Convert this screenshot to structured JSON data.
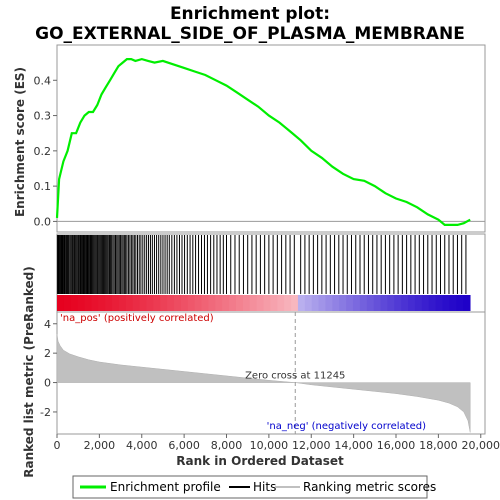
{
  "chart_data": {
    "type": "line",
    "title_line1": "Enrichment plot:",
    "title_line2": "GO_EXTERNAL_SIDE_OF_PLASMA_MEMBRANE",
    "es_panel": {
      "ylabel": "Enrichment score (ES)",
      "ylim": [
        -0.03,
        0.5
      ],
      "yticks": [
        0.0,
        0.1,
        0.2,
        0.3,
        0.4
      ],
      "ytick_labels": [
        "0.0",
        "0.1",
        "0.2",
        "0.3",
        "0.4"
      ],
      "series": [
        {
          "name": "Enrichment profile",
          "color": "#00ee00",
          "x": [
            0,
            100,
            300,
            500,
            700,
            900,
            1100,
            1300,
            1500,
            1700,
            1900,
            2100,
            2300,
            2500,
            2700,
            2900,
            3100,
            3300,
            3500,
            3700,
            4000,
            4300,
            4600,
            5000,
            5500,
            6000,
            6500,
            7000,
            7500,
            8000,
            8500,
            9000,
            9500,
            10000,
            10500,
            11000,
            11500,
            12000,
            12500,
            13000,
            13500,
            14000,
            14500,
            15000,
            15500,
            16000,
            16500,
            17000,
            17500,
            18000,
            18300,
            18600,
            18900,
            19200,
            19500
          ],
          "y": [
            0.01,
            0.12,
            0.17,
            0.2,
            0.25,
            0.25,
            0.28,
            0.3,
            0.31,
            0.31,
            0.33,
            0.36,
            0.38,
            0.4,
            0.42,
            0.44,
            0.45,
            0.46,
            0.46,
            0.455,
            0.46,
            0.455,
            0.45,
            0.455,
            0.445,
            0.435,
            0.425,
            0.415,
            0.4,
            0.385,
            0.365,
            0.345,
            0.325,
            0.3,
            0.28,
            0.255,
            0.23,
            0.2,
            0.18,
            0.155,
            0.135,
            0.12,
            0.115,
            0.1,
            0.08,
            0.065,
            0.055,
            0.04,
            0.02,
            0.005,
            -0.01,
            -0.01,
            -0.01,
            -0.005,
            0.005
          ]
        }
      ]
    },
    "hits": {
      "positions": [
        20,
        60,
        90,
        130,
        170,
        210,
        240,
        280,
        330,
        370,
        420,
        460,
        500,
        540,
        600,
        650,
        700,
        740,
        790,
        830,
        880,
        930,
        980,
        1020,
        1070,
        1110,
        1160,
        1200,
        1250,
        1300,
        1340,
        1390,
        1440,
        1490,
        1540,
        1580,
        1630,
        1680,
        1730,
        1780,
        1830,
        1880,
        1920,
        1970,
        2020,
        2070,
        2120,
        2170,
        2220,
        2270,
        2320,
        2370,
        2420,
        2480,
        2530,
        2580,
        2640,
        2700,
        2760,
        2820,
        2880,
        2940,
        3000,
        3060,
        3120,
        3180,
        3240,
        3300,
        3370,
        3440,
        3510,
        3580,
        3650,
        3720,
        3800,
        3880,
        3960,
        4050,
        4140,
        4230,
        4320,
        4410,
        4500,
        4600,
        4700,
        4800,
        4900,
        5000,
        5100,
        5200,
        5300,
        5420,
        5540,
        5660,
        5780,
        5900,
        6020,
        6150,
        6280,
        6410,
        6540,
        6680,
        6820,
        6960,
        7100,
        7250,
        7400,
        7550,
        7700,
        7850,
        8000,
        8200,
        8400,
        8600,
        8800,
        9000,
        9200,
        9400,
        9600,
        9800,
        10000,
        10200,
        10400,
        10600,
        10800,
        11000,
        11200,
        11500,
        11700,
        11900,
        12100,
        12300,
        12500,
        12700,
        12900,
        13100,
        13300,
        13500,
        13700,
        13900,
        14100,
        14300,
        14500,
        14700,
        14900,
        15100,
        15300,
        15500,
        15700,
        15900,
        16100,
        16300,
        16500,
        16700,
        16900,
        17100,
        17300,
        17500,
        17700,
        17900,
        18100,
        18300,
        18500,
        18700,
        18900,
        19100,
        19300
      ],
      "color": "#000000"
    },
    "ranking_panel": {
      "ylabel": "Ranked list metric (PreRanked)",
      "ylim": [
        -3.5,
        4.8
      ],
      "yticks": [
        -2,
        0,
        2,
        4
      ],
      "ytick_labels": [
        "-2",
        "0",
        "2",
        "4"
      ],
      "series": [
        {
          "name": "Ranking metric scores",
          "color": "#c0c0c0",
          "x": [
            0,
            50,
            150,
            300,
            600,
            1000,
            1500,
            2000,
            3000,
            4000,
            5000,
            6000,
            7000,
            8000,
            9000,
            10000,
            11245,
            12000,
            13000,
            14000,
            15000,
            16000,
            17000,
            18000,
            18500,
            18900,
            19200,
            19400,
            19500
          ],
          "y": [
            3.3,
            2.8,
            2.5,
            2.2,
            1.95,
            1.75,
            1.55,
            1.4,
            1.2,
            1.05,
            0.9,
            0.75,
            0.6,
            0.45,
            0.3,
            0.15,
            0.0,
            -0.15,
            -0.3,
            -0.45,
            -0.6,
            -0.75,
            -0.95,
            -1.2,
            -1.4,
            -1.65,
            -2.0,
            -2.6,
            -3.4
          ]
        }
      ],
      "pos_label": "'na_pos' (positively correlated)",
      "neg_label": "'na_neg' (negatively correlated)",
      "zero_cross_label": "Zero cross at 11245",
      "zero_cross": 11245
    },
    "xaxis": {
      "xlabel": "Rank in Ordered Dataset",
      "xlim": [
        0,
        20200
      ],
      "xticks": [
        0,
        2000,
        4000,
        6000,
        8000,
        10000,
        12000,
        14000,
        16000,
        18000,
        20000
      ],
      "xtick_labels": [
        "0",
        "2,000",
        "4,000",
        "6,000",
        "8,000",
        "10,000",
        "12,000",
        "14,000",
        "16,000",
        "18,000",
        "20,000"
      ]
    },
    "legend": {
      "placement": "bottom",
      "items": [
        {
          "name": "Enrichment profile",
          "color": "#00ee00"
        },
        {
          "name": "Hits",
          "color": "#000000"
        },
        {
          "name": "Ranking metric scores",
          "color": "#c0c0c0"
        }
      ]
    },
    "colors": {
      "pos_label": "#cc0000",
      "neg_label": "#0000cc",
      "heat_red": "#e6001e",
      "heat_blue": "#1e00c8"
    }
  }
}
